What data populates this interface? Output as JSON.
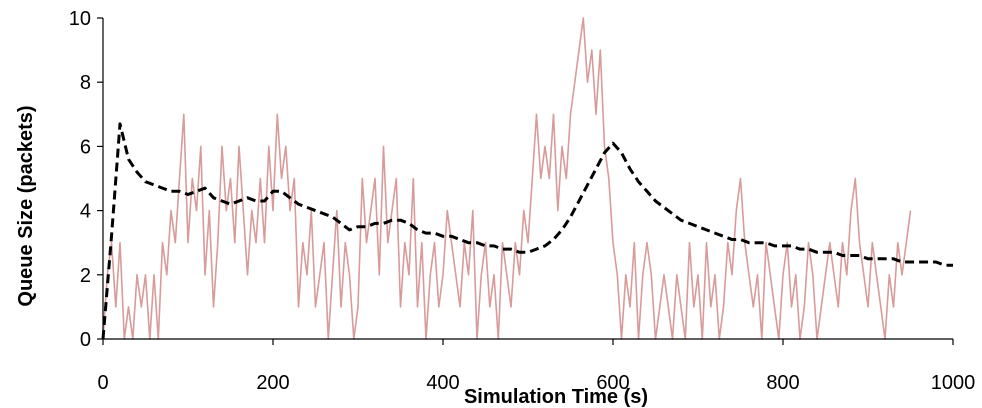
{
  "chart_data": {
    "type": "line",
    "title": "",
    "xlabel": "Simulation Time (s)",
    "ylabel": "Queue Size (packets)",
    "xlim": [
      0,
      1000
    ],
    "ylim": [
      0,
      10
    ],
    "xticks": [
      0,
      200,
      400,
      600,
      800,
      1000
    ],
    "yticks": [
      0,
      2,
      4,
      6,
      8,
      10
    ],
    "grid": false,
    "legend": "none",
    "series": [
      {
        "style": "solid",
        "color": "#d99a9a",
        "x": [
          0,
          5,
          10,
          15,
          20,
          25,
          30,
          35,
          40,
          45,
          50,
          55,
          60,
          65,
          70,
          75,
          80,
          85,
          90,
          95,
          100,
          105,
          110,
          115,
          120,
          125,
          130,
          135,
          140,
          145,
          150,
          155,
          160,
          165,
          170,
          175,
          180,
          185,
          190,
          195,
          200,
          205,
          210,
          215,
          220,
          225,
          230,
          235,
          240,
          245,
          250,
          255,
          260,
          265,
          270,
          275,
          280,
          285,
          290,
          295,
          300,
          305,
          310,
          315,
          320,
          325,
          330,
          335,
          340,
          345,
          350,
          355,
          360,
          365,
          370,
          375,
          380,
          385,
          390,
          395,
          400,
          405,
          410,
          415,
          420,
          425,
          430,
          435,
          440,
          445,
          450,
          455,
          460,
          465,
          470,
          475,
          480,
          485,
          490,
          495,
          500,
          505,
          510,
          515,
          520,
          525,
          530,
          535,
          540,
          545,
          550,
          555,
          560,
          565,
          570,
          575,
          580,
          585,
          590,
          595,
          600,
          605,
          610,
          615,
          620,
          625,
          630,
          635,
          640,
          645,
          650,
          655,
          660,
          665,
          670,
          675,
          680,
          685,
          690,
          695,
          700,
          705,
          710,
          715,
          720,
          725,
          730,
          735,
          740,
          745,
          750,
          755,
          760,
          765,
          770,
          775,
          780,
          785,
          790,
          795,
          800,
          805,
          810,
          815,
          820,
          825,
          830,
          835,
          840,
          845,
          850,
          855,
          860,
          865,
          870,
          875,
          880,
          885,
          890,
          895,
          900,
          905,
          910,
          915,
          920,
          925,
          930,
          935,
          940,
          945,
          950
        ],
        "y": [
          0,
          2,
          3,
          1,
          3,
          0,
          1,
          0,
          2,
          1,
          2,
          0,
          2,
          0,
          3,
          2,
          4,
          3,
          5,
          7,
          3,
          5,
          4,
          6,
          2,
          4,
          1,
          3,
          6,
          4,
          5,
          3,
          6,
          4,
          2,
          4,
          3,
          5,
          3,
          6,
          4,
          7,
          5,
          6,
          4,
          5,
          1,
          3,
          2,
          4,
          1,
          2,
          3,
          0,
          2,
          4,
          1,
          3,
          2,
          0,
          1,
          5,
          3,
          4,
          5,
          2,
          6,
          3,
          4,
          5,
          1,
          3,
          2,
          5,
          1,
          3,
          0,
          2,
          3,
          1,
          2,
          4,
          3,
          2,
          1,
          3,
          2,
          4,
          0,
          2,
          3,
          1,
          2,
          0,
          3,
          2,
          1,
          3,
          2,
          4,
          3,
          5,
          7,
          5,
          6,
          5,
          7,
          4,
          6,
          5,
          7,
          8,
          9,
          10,
          8,
          9,
          7,
          9,
          6,
          5,
          3,
          2,
          0,
          2,
          1,
          3,
          0,
          2,
          3,
          2,
          0,
          1,
          2,
          1,
          0,
          2,
          1,
          0,
          3,
          1,
          2,
          0,
          3,
          1,
          2,
          0,
          1,
          3,
          2,
          4,
          5,
          3,
          2,
          1,
          2,
          0,
          3,
          2,
          1,
          0,
          2,
          3,
          1,
          2,
          0,
          1,
          3,
          2,
          0,
          1,
          2,
          3,
          2,
          1,
          3,
          2,
          4,
          5,
          3,
          2,
          1,
          3,
          2,
          1,
          0,
          2,
          1,
          3,
          2,
          3,
          4
        ]
      },
      {
        "style": "dashed",
        "color": "#000000",
        "x": [
          0,
          10,
          20,
          30,
          40,
          50,
          60,
          70,
          80,
          90,
          100,
          110,
          120,
          130,
          140,
          150,
          160,
          170,
          180,
          190,
          200,
          210,
          220,
          230,
          240,
          250,
          260,
          270,
          280,
          290,
          300,
          310,
          320,
          330,
          340,
          350,
          360,
          370,
          380,
          390,
          400,
          410,
          420,
          430,
          440,
          450,
          460,
          470,
          480,
          490,
          500,
          510,
          520,
          530,
          540,
          550,
          560,
          570,
          580,
          590,
          600,
          610,
          620,
          630,
          640,
          650,
          660,
          670,
          680,
          690,
          700,
          710,
          720,
          730,
          740,
          750,
          760,
          770,
          780,
          790,
          800,
          810,
          820,
          830,
          840,
          850,
          860,
          870,
          880,
          890,
          900,
          910,
          920,
          930,
          940,
          950,
          960,
          970,
          980,
          990,
          1000
        ],
        "y": [
          0,
          3.2,
          6.7,
          5.6,
          5.2,
          4.9,
          4.8,
          4.7,
          4.6,
          4.6,
          4.5,
          4.6,
          4.7,
          4.4,
          4.3,
          4.2,
          4.3,
          4.4,
          4.3,
          4.3,
          4.6,
          4.6,
          4.4,
          4.2,
          4.1,
          4.0,
          3.9,
          3.8,
          3.6,
          3.4,
          3.5,
          3.5,
          3.6,
          3.6,
          3.7,
          3.7,
          3.6,
          3.4,
          3.3,
          3.3,
          3.2,
          3.2,
          3.1,
          3.0,
          3.0,
          2.9,
          2.9,
          2.8,
          2.8,
          2.7,
          2.7,
          2.8,
          2.9,
          3.1,
          3.4,
          3.8,
          4.3,
          4.8,
          5.3,
          5.8,
          6.1,
          5.8,
          5.3,
          4.9,
          4.6,
          4.3,
          4.1,
          3.9,
          3.7,
          3.6,
          3.5,
          3.4,
          3.3,
          3.2,
          3.1,
          3.1,
          3.0,
          3.0,
          3.0,
          2.9,
          2.9,
          2.9,
          2.8,
          2.8,
          2.7,
          2.7,
          2.7,
          2.6,
          2.6,
          2.6,
          2.5,
          2.5,
          2.5,
          2.5,
          2.4,
          2.4,
          2.4,
          2.4,
          2.4,
          2.3,
          2.3
        ]
      }
    ]
  }
}
